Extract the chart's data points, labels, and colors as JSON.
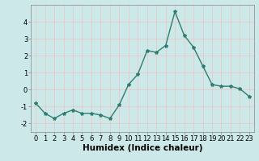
{
  "x": [
    0,
    1,
    2,
    3,
    4,
    5,
    6,
    7,
    8,
    9,
    10,
    11,
    12,
    13,
    14,
    15,
    16,
    17,
    18,
    19,
    20,
    21,
    22,
    23
  ],
  "y": [
    -0.8,
    -1.4,
    -1.7,
    -1.4,
    -1.2,
    -1.4,
    -1.4,
    -1.5,
    -1.7,
    -0.9,
    0.3,
    0.9,
    2.3,
    2.2,
    2.6,
    4.6,
    3.2,
    2.5,
    1.4,
    0.3,
    0.2,
    0.2,
    0.05,
    -0.4
  ],
  "line_color": "#2e7d6e",
  "marker": "*",
  "marker_size": 3,
  "bg_color": "#cce8e8",
  "grid_color": "#e8c8c8",
  "xlabel": "Humidex (Indice chaleur)",
  "ylim": [
    -2.5,
    5.0
  ],
  "xlim": [
    -0.5,
    23.5
  ],
  "yticks": [
    -2,
    -1,
    0,
    1,
    2,
    3,
    4
  ],
  "xticks": [
    0,
    1,
    2,
    3,
    4,
    5,
    6,
    7,
    8,
    9,
    10,
    11,
    12,
    13,
    14,
    15,
    16,
    17,
    18,
    19,
    20,
    21,
    22,
    23
  ],
  "tick_fontsize": 6,
  "xlabel_fontsize": 7.5,
  "line_width": 1.0,
  "spine_color": "#888888"
}
